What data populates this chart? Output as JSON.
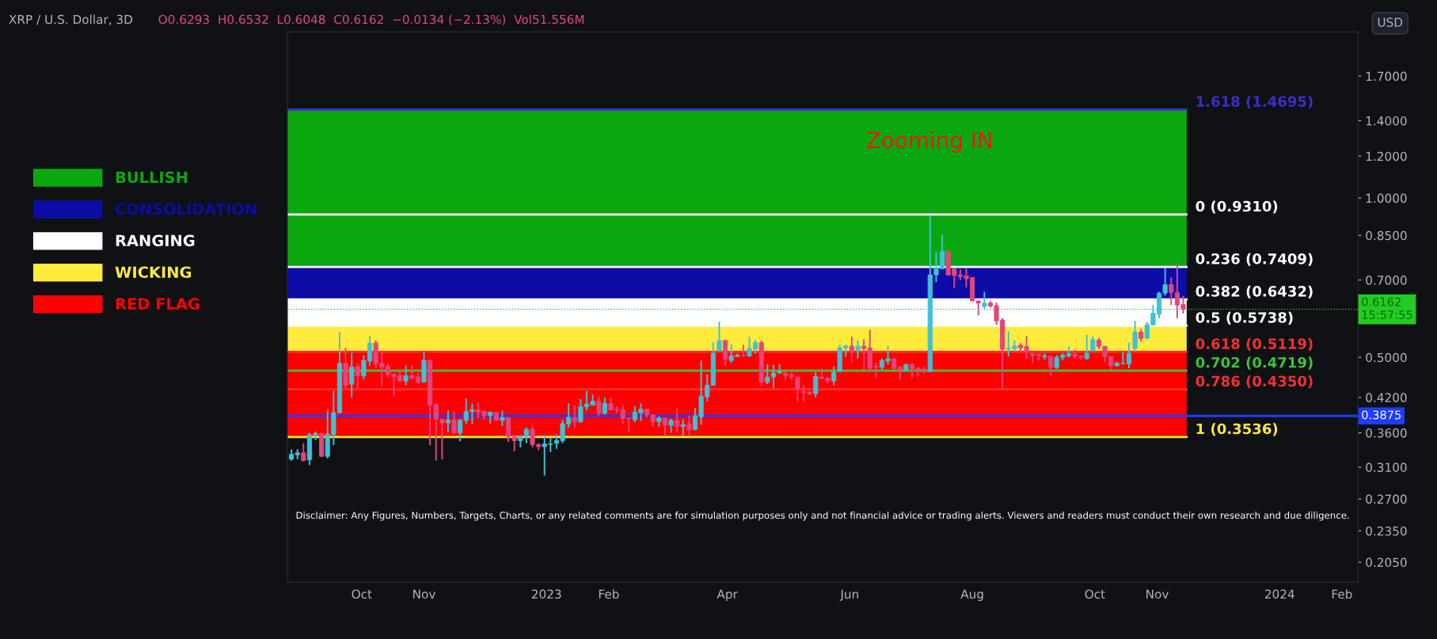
{
  "chart_data": {
    "type": "candlestick",
    "title": "XRP / U.S. Dollar, 3D",
    "subtitle": "O0.6293  H0.6532  L0.6048  C0.6162  −0.0134 (−2.13%)  Vol51.556M",
    "ylabel": "USD",
    "annotations": [
      "Zooming IN",
      "Disclaimer: Any Figures, Numbers, Targets, Charts, or any related comments are for simulation purposes only and not financial advice or trading alerts. Viewers and readers must conduct their own research and due diligence."
    ],
    "x": [
      "2022-08-27",
      "2022-08-30",
      "2022-09-02",
      "2022-09-05",
      "2022-09-08",
      "2022-09-11",
      "2022-09-14",
      "2022-09-17",
      "2022-09-20",
      "2022-09-23",
      "2022-09-26",
      "2022-09-29",
      "2022-10-02",
      "2022-10-05",
      "2022-10-08",
      "2022-10-11",
      "2022-10-14",
      "2022-10-17",
      "2022-10-20",
      "2022-10-23",
      "2022-10-26",
      "2022-10-29",
      "2022-11-01",
      "2022-11-04",
      "2022-11-07",
      "2022-11-10",
      "2022-11-13",
      "2022-11-16",
      "2022-11-19",
      "2022-11-22",
      "2022-11-25",
      "2022-11-28",
      "2022-12-01",
      "2022-12-04",
      "2022-12-07",
      "2022-12-10",
      "2022-12-13",
      "2022-12-16",
      "2022-12-19",
      "2022-12-22",
      "2022-12-25",
      "2022-12-28",
      "2022-12-31",
      "2023-01-03",
      "2023-01-06",
      "2023-01-09",
      "2023-01-12",
      "2023-01-15",
      "2023-01-18",
      "2023-01-21",
      "2023-01-24",
      "2023-01-27",
      "2023-01-30",
      "2023-02-02",
      "2023-02-05",
      "2023-02-08",
      "2023-02-11",
      "2023-02-14",
      "2023-02-17",
      "2023-02-20",
      "2023-02-23",
      "2023-02-26",
      "2023-03-01",
      "2023-03-04",
      "2023-03-07",
      "2023-03-10",
      "2023-03-13",
      "2023-03-16",
      "2023-03-19",
      "2023-03-22",
      "2023-03-25",
      "2023-03-28",
      "2023-03-31",
      "2023-04-03",
      "2023-04-06",
      "2023-04-09",
      "2023-04-12",
      "2023-04-15",
      "2023-04-18",
      "2023-04-21",
      "2023-04-24",
      "2023-04-27",
      "2023-04-30",
      "2023-05-03",
      "2023-05-06",
      "2023-05-09",
      "2023-05-12",
      "2023-05-15",
      "2023-05-18",
      "2023-05-21",
      "2023-05-24",
      "2023-05-27",
      "2023-05-30",
      "2023-06-02",
      "2023-06-05",
      "2023-06-08",
      "2023-06-11",
      "2023-06-14",
      "2023-06-17",
      "2023-06-20",
      "2023-06-23",
      "2023-06-26",
      "2023-06-29",
      "2023-07-02",
      "2023-07-05",
      "2023-07-08",
      "2023-07-11",
      "2023-07-14",
      "2023-07-17",
      "2023-07-20",
      "2023-07-23",
      "2023-07-26",
      "2023-07-29",
      "2023-08-01",
      "2023-08-04",
      "2023-08-07",
      "2023-08-10",
      "2023-08-13",
      "2023-08-16",
      "2023-08-19",
      "2023-08-22",
      "2023-08-25",
      "2023-08-28",
      "2023-08-31",
      "2023-09-03",
      "2023-09-06",
      "2023-09-09",
      "2023-09-12",
      "2023-09-15",
      "2023-09-18",
      "2023-09-21",
      "2023-09-24",
      "2023-09-27",
      "2023-09-30",
      "2023-10-03",
      "2023-10-06",
      "2023-10-09",
      "2023-10-12",
      "2023-10-15",
      "2023-10-18",
      "2023-10-21",
      "2023-10-24",
      "2023-10-27",
      "2023-10-30",
      "2023-11-02",
      "2023-11-05",
      "2023-11-08",
      "2023-11-11",
      "2023-11-14"
    ],
    "ohlc": [
      [
        0.321,
        0.335,
        0.319,
        0.328
      ],
      [
        0.327,
        0.335,
        0.321,
        0.33
      ],
      [
        0.33,
        0.344,
        0.318,
        0.319
      ],
      [
        0.32,
        0.36,
        0.313,
        0.357
      ],
      [
        0.356,
        0.362,
        0.349,
        0.359
      ],
      [
        0.359,
        0.36,
        0.324,
        0.325
      ],
      [
        0.325,
        0.399,
        0.322,
        0.358
      ],
      [
        0.357,
        0.432,
        0.341,
        0.393
      ],
      [
        0.393,
        0.558,
        0.392,
        0.487
      ],
      [
        0.487,
        0.521,
        0.437,
        0.443
      ],
      [
        0.445,
        0.51,
        0.419,
        0.48
      ],
      [
        0.48,
        0.486,
        0.437,
        0.461
      ],
      [
        0.461,
        0.505,
        0.454,
        0.493
      ],
      [
        0.492,
        0.549,
        0.482,
        0.532
      ],
      [
        0.532,
        0.538,
        0.477,
        0.486
      ],
      [
        0.487,
        0.512,
        0.441,
        0.479
      ],
      [
        0.481,
        0.487,
        0.458,
        0.464
      ],
      [
        0.465,
        0.465,
        0.4225,
        0.459
      ],
      [
        0.462,
        0.473,
        0.449,
        0.451
      ],
      [
        0.451,
        0.483,
        0.443,
        0.462
      ],
      [
        0.462,
        0.483,
        0.454,
        0.457
      ],
      [
        0.459,
        0.467,
        0.445,
        0.449
      ],
      [
        0.449,
        0.511,
        0.449,
        0.493
      ],
      [
        0.494,
        0.494,
        0.341,
        0.406
      ],
      [
        0.407,
        0.41,
        0.319,
        0.382
      ],
      [
        0.382,
        0.382,
        0.321,
        0.376
      ],
      [
        0.376,
        0.397,
        0.361,
        0.381
      ],
      [
        0.381,
        0.395,
        0.358,
        0.36
      ],
      [
        0.36,
        0.381,
        0.347,
        0.381
      ],
      [
        0.38,
        0.418,
        0.374,
        0.395
      ],
      [
        0.395,
        0.409,
        0.374,
        0.398
      ],
      [
        0.398,
        0.411,
        0.384,
        0.394
      ],
      [
        0.395,
        0.397,
        0.381,
        0.388
      ],
      [
        0.388,
        0.394,
        0.375,
        0.394
      ],
      [
        0.394,
        0.394,
        0.379,
        0.38
      ],
      [
        0.38,
        0.397,
        0.371,
        0.385
      ],
      [
        0.385,
        0.385,
        0.346,
        0.354
      ],
      [
        0.354,
        0.354,
        0.332,
        0.348
      ],
      [
        0.348,
        0.354,
        0.338,
        0.354
      ],
      [
        0.354,
        0.369,
        0.344,
        0.365
      ],
      [
        0.365,
        0.373,
        0.338,
        0.342
      ],
      [
        0.342,
        0.344,
        0.334,
        0.339
      ],
      [
        0.339,
        0.356,
        0.299,
        0.343
      ],
      [
        0.342,
        0.352,
        0.331,
        0.343
      ],
      [
        0.344,
        0.357,
        0.336,
        0.348
      ],
      [
        0.348,
        0.381,
        0.344,
        0.3745
      ],
      [
        0.374,
        0.409,
        0.368,
        0.385
      ],
      [
        0.385,
        0.406,
        0.368,
        0.378
      ],
      [
        0.378,
        0.417,
        0.376,
        0.403
      ],
      [
        0.403,
        0.432,
        0.397,
        0.408
      ],
      [
        0.406,
        0.425,
        0.406,
        0.413
      ],
      [
        0.413,
        0.422,
        0.388,
        0.392
      ],
      [
        0.392,
        0.42,
        0.39,
        0.409
      ],
      [
        0.409,
        0.42,
        0.397,
        0.398
      ],
      [
        0.399,
        0.404,
        0.393,
        0.398
      ],
      [
        0.398,
        0.407,
        0.3745,
        0.383
      ],
      [
        0.384,
        0.384,
        0.362,
        0.383
      ],
      [
        0.381,
        0.404,
        0.377,
        0.394
      ],
      [
        0.393,
        0.409,
        0.379,
        0.399
      ],
      [
        0.399,
        0.4,
        0.385,
        0.389
      ],
      [
        0.389,
        0.39,
        0.37,
        0.378
      ],
      [
        0.378,
        0.387,
        0.37,
        0.384
      ],
      [
        0.384,
        0.384,
        0.356,
        0.372
      ],
      [
        0.372,
        0.383,
        0.36,
        0.38
      ],
      [
        0.38,
        0.401,
        0.36,
        0.37
      ],
      [
        0.37,
        0.382,
        0.356,
        0.373
      ],
      [
        0.3745,
        0.388,
        0.356,
        0.365
      ],
      [
        0.365,
        0.401,
        0.364,
        0.388
      ],
      [
        0.386,
        0.493,
        0.373,
        0.4225
      ],
      [
        0.421,
        0.464,
        0.413,
        0.443
      ],
      [
        0.443,
        0.534,
        0.442,
        0.509
      ],
      [
        0.514,
        0.584,
        0.514,
        0.538
      ],
      [
        0.538,
        0.539,
        0.482,
        0.496
      ],
      [
        0.493,
        0.5285,
        0.488,
        0.503
      ],
      [
        0.502,
        0.508,
        0.501,
        0.505
      ],
      [
        0.505,
        0.5285,
        0.501,
        0.504
      ],
      [
        0.503,
        0.547,
        0.501,
        0.5195
      ],
      [
        0.518,
        0.539,
        0.508,
        0.533
      ],
      [
        0.533,
        0.538,
        0.441,
        0.449
      ],
      [
        0.449,
        0.485,
        0.445,
        0.459
      ],
      [
        0.459,
        0.484,
        0.437,
        0.467
      ],
      [
        0.467,
        0.486,
        0.466,
        0.47
      ],
      [
        0.467,
        0.475,
        0.4526,
        0.462
      ],
      [
        0.463,
        0.4685,
        0.4526,
        0.459
      ],
      [
        0.459,
        0.459,
        0.413,
        0.437
      ],
      [
        0.431,
        0.443,
        0.412,
        0.429
      ],
      [
        0.43,
        0.43,
        0.424,
        0.427
      ],
      [
        0.427,
        0.4685,
        0.42,
        0.46
      ],
      [
        0.459,
        0.4766,
        0.455,
        0.456
      ],
      [
        0.457,
        0.459,
        0.446,
        0.451
      ],
      [
        0.451,
        0.481,
        0.443,
        0.4685
      ],
      [
        0.47,
        0.5285,
        0.47,
        0.521
      ],
      [
        0.521,
        0.5285,
        0.501,
        0.525
      ],
      [
        0.525,
        0.547,
        0.488,
        0.515
      ],
      [
        0.515,
        0.538,
        0.497,
        0.525
      ],
      [
        0.525,
        0.541,
        0.474,
        0.5195
      ],
      [
        0.521,
        0.564,
        0.4685,
        0.4766
      ],
      [
        0.481,
        0.488,
        0.457,
        0.479
      ],
      [
        0.479,
        0.497,
        0.474,
        0.4933
      ],
      [
        0.492,
        0.5255,
        0.4848,
        0.497
      ],
      [
        0.497,
        0.499,
        0.475,
        0.4766
      ],
      [
        0.479,
        0.482,
        0.4526,
        0.473
      ],
      [
        0.473,
        0.486,
        0.47,
        0.4848
      ],
      [
        0.484,
        0.488,
        0.458,
        0.476
      ],
      [
        0.477,
        0.48,
        0.4605,
        0.474
      ],
      [
        0.475,
        0.48,
        0.466,
        0.473
      ],
      [
        0.471,
        0.927,
        0.4685,
        0.716
      ],
      [
        0.716,
        0.79,
        0.694,
        0.735
      ],
      [
        0.735,
        0.853,
        0.735,
        0.793
      ],
      [
        0.793,
        0.793,
        0.715,
        0.715
      ],
      [
        0.735,
        0.735,
        0.675,
        0.714
      ],
      [
        0.716,
        0.733,
        0.7,
        0.711
      ],
      [
        0.713,
        0.735,
        0.678,
        0.704
      ],
      [
        0.708,
        0.708,
        0.638,
        0.639
      ],
      [
        0.639,
        0.64,
        0.6,
        0.633
      ],
      [
        0.624,
        0.665,
        0.617,
        0.633
      ],
      [
        0.633,
        0.639,
        0.621,
        0.625
      ],
      [
        0.626,
        0.635,
        0.576,
        0.586
      ],
      [
        0.588,
        0.593,
        0.437,
        0.518
      ],
      [
        0.518,
        0.56,
        0.502,
        0.52
      ],
      [
        0.5195,
        0.538,
        0.513,
        0.525
      ],
      [
        0.527,
        0.532,
        0.513,
        0.521
      ],
      [
        0.524,
        0.549,
        0.497,
        0.513
      ],
      [
        0.508,
        0.508,
        0.488,
        0.504
      ],
      [
        0.507,
        0.508,
        0.4933,
        0.504
      ],
      [
        0.501,
        0.509,
        0.495,
        0.503
      ],
      [
        0.503,
        0.503,
        0.462,
        0.479
      ],
      [
        0.478,
        0.505,
        0.475,
        0.5
      ],
      [
        0.5,
        0.509,
        0.4933,
        0.505
      ],
      [
        0.503,
        0.525,
        0.5,
        0.508
      ],
      [
        0.507,
        0.517,
        0.497,
        0.502
      ],
      [
        0.503,
        0.503,
        0.495,
        0.5
      ],
      [
        0.497,
        0.551,
        0.495,
        0.509
      ],
      [
        0.515,
        0.548,
        0.513,
        0.54
      ],
      [
        0.539,
        0.544,
        0.518,
        0.524
      ],
      [
        0.524,
        0.526,
        0.49,
        0.502
      ],
      [
        0.502,
        0.502,
        0.475,
        0.482
      ],
      [
        0.482,
        0.49,
        0.48,
        0.488
      ],
      [
        0.486,
        0.511,
        0.4848,
        0.487
      ],
      [
        0.486,
        0.533,
        0.4766,
        0.509
      ],
      [
        0.5195,
        0.586,
        0.513,
        0.558
      ],
      [
        0.558,
        0.566,
        0.535,
        0.543
      ],
      [
        0.543,
        0.583,
        0.541,
        0.576
      ],
      [
        0.576,
        0.628,
        0.575,
        0.606
      ],
      [
        0.603,
        0.665,
        0.593,
        0.661
      ],
      [
        0.661,
        0.737,
        0.654,
        0.686
      ],
      [
        0.686,
        0.708,
        0.628,
        0.663
      ],
      [
        0.663,
        0.754,
        0.593,
        0.628
      ],
      [
        0.6293,
        0.6532,
        0.6048,
        0.6162
      ]
    ],
    "colors": [
      "#3fc1d6",
      "#3fc1d6",
      "#e2467f",
      "#3fc1d6",
      "#3fc1d6",
      "#e2467f",
      "#3fc1d6",
      "#3fc1d6",
      "#3fc1d6",
      "#e2467f",
      "#3fc1d6",
      "#e2467f",
      "#3fc1d6",
      "#3fc1d6",
      "#e2467f",
      "#e2467f",
      "#e2467f",
      "#e2467f",
      "#e2467f",
      "#3fc1d6",
      "#e2467f",
      "#e2467f",
      "#3fc1d6",
      "#e2467f",
      "#e2467f",
      "#e2467f",
      "#3fc1d6",
      "#e2467f",
      "#3fc1d6",
      "#3fc1d6",
      "#3fc1d6",
      "#e2467f",
      "#e2467f",
      "#3fc1d6",
      "#e2467f",
      "#3fc1d6",
      "#e2467f",
      "#e2467f",
      "#3fc1d6",
      "#3fc1d6",
      "#e2467f",
      "#e2467f",
      "#3fc1d6",
      "#3fc1d6",
      "#3fc1d6",
      "#3fc1d6",
      "#3fc1d6",
      "#e2467f",
      "#3fc1d6",
      "#3fc1d6",
      "#3fc1d6",
      "#e2467f",
      "#3fc1d6",
      "#e2467f",
      "#e2467f",
      "#e2467f",
      "#e2467f",
      "#3fc1d6",
      "#3fc1d6",
      "#e2467f",
      "#e2467f",
      "#3fc1d6",
      "#e2467f",
      "#3fc1d6",
      "#e2467f",
      "#3fc1d6",
      "#e2467f",
      "#3fc1d6",
      "#3fc1d6",
      "#3fc1d6",
      "#3fc1d6",
      "#3fc1d6",
      "#e2467f",
      "#3fc1d6",
      "#3fc1d6",
      "#e2467f",
      "#3fc1d6",
      "#3fc1d6",
      "#e2467f",
      "#3fc1d6",
      "#3fc1d6",
      "#3fc1d6",
      "#e2467f",
      "#e2467f",
      "#e2467f",
      "#e2467f",
      "#e2467f",
      "#3fc1d6",
      "#e2467f",
      "#e2467f",
      "#3fc1d6",
      "#3fc1d6",
      "#3fc1d6",
      "#e2467f",
      "#3fc1d6",
      "#e2467f",
      "#e2467f",
      "#e2467f",
      "#3fc1d6",
      "#3fc1d6",
      "#e2467f",
      "#e2467f",
      "#3fc1d6",
      "#e2467f",
      "#e2467f",
      "#e2467f",
      "#3fc1d6",
      "#3fc1d6",
      "#3fc1d6",
      "#e2467f",
      "#e2467f",
      "#e2467f",
      "#e2467f",
      "#e2467f",
      "#e2467f",
      "#3fc1d6",
      "#e2467f",
      "#e2467f",
      "#e2467f",
      "#3fc1d6",
      "#3fc1d6",
      "#e2467f",
      "#e2467f",
      "#e2467f",
      "#e2467f",
      "#3fc1d6",
      "#e2467f",
      "#3fc1d6",
      "#3fc1d6",
      "#3fc1d6",
      "#e2467f",
      "#e2467f",
      "#3fc1d6",
      "#3fc1d6",
      "#e2467f",
      "#e2467f",
      "#e2467f",
      "#3fc1d6",
      "#3fc1d6",
      "#3fc1d6",
      "#3fc1d6",
      "#e2467f",
      "#3fc1d6",
      "#3fc1d6",
      "#3fc1d6",
      "#3fc1d6",
      "#e2467f",
      "#e2467f",
      "#e2467f"
    ],
    "log": "y",
    "xlim": [
      "2022-08-25",
      "2024-02-09"
    ],
    "xticks": [
      {
        "value": "2022-10-01",
        "label": "Oct"
      },
      {
        "value": "2022-11-01",
        "label": "Nov"
      },
      {
        "value": "2023-01-01",
        "label": "2023"
      },
      {
        "value": "2023-02-01",
        "label": "Feb"
      },
      {
        "value": "2023-04-01",
        "label": "Apr"
      },
      {
        "value": "2023-06-01",
        "label": "Jun"
      },
      {
        "value": "2023-08-01",
        "label": "Aug"
      },
      {
        "value": "2023-10-01",
        "label": "Oct"
      },
      {
        "value": "2023-11-01",
        "label": "Nov"
      },
      {
        "value": "2024-01-01",
        "label": "2024"
      },
      {
        "value": "2024-02-01",
        "label": "Feb"
      }
    ],
    "ylim": [
      0.188,
      2.06
    ],
    "yticks": [
      {
        "value": 1.7,
        "label": "1.7000"
      },
      {
        "value": 1.4,
        "label": "1.4000"
      },
      {
        "value": 1.2,
        "label": "1.2000"
      },
      {
        "value": 1.0,
        "label": "1.0000"
      },
      {
        "value": 0.85,
        "label": "0.8500"
      },
      {
        "value": 0.7,
        "label": "0.7000"
      },
      {
        "value": 0.5,
        "label": "0.5000"
      },
      {
        "value": 0.42,
        "label": "0.4200"
      },
      {
        "value": 0.36,
        "label": "0.3600"
      },
      {
        "value": 0.31,
        "label": "0.3100"
      },
      {
        "value": 0.27,
        "label": "0.2700"
      },
      {
        "value": 0.235,
        "label": "0.2350"
      },
      {
        "value": 0.205,
        "label": "0.2050"
      }
    ],
    "bands": [
      {
        "axis": "y",
        "from": 0.7409,
        "to": 1.4695,
        "label": "BULLISH",
        "color": "#0aa80e"
      },
      {
        "axis": "y",
        "from": 0.6432,
        "to": 0.7409,
        "label": "CONSOLIDATION",
        "color": "#0c0ca6"
      },
      {
        "axis": "y",
        "from": 0.5738,
        "to": 0.6432,
        "label": "RANGING",
        "color": "#ffffff"
      },
      {
        "axis": "y",
        "from": 0.5119,
        "to": 0.5738,
        "label": "WICKING",
        "color": "#ffeb3b"
      },
      {
        "axis": "y",
        "from": 0.3536,
        "to": 0.5119,
        "label": "RED FLAG",
        "color": "#ff0000"
      }
    ],
    "ref_lines": [
      {
        "axis": "y",
        "value": 1.4695,
        "label": "1.618 (1.4695)",
        "color": "#3a2fc8"
      },
      {
        "axis": "y",
        "value": 0.931,
        "label": "0 (0.9310)",
        "color": "#ffffff"
      },
      {
        "axis": "y",
        "value": 0.7409,
        "label": "0.236 (0.7409)",
        "color": "#ffffff"
      },
      {
        "axis": "y",
        "value": 0.6432,
        "label": "0.382 (0.6432)",
        "color": "#ffffff"
      },
      {
        "axis": "y",
        "value": 0.5738,
        "label": "0.5 (0.5738)",
        "color": "#ffffff"
      },
      {
        "axis": "y",
        "value": 0.5119,
        "label": "0.618 (0.5119)",
        "color": "#f23030"
      },
      {
        "axis": "y",
        "value": 0.4719,
        "label": "0.702 (0.4719)",
        "color": "#3cc43c"
      },
      {
        "axis": "y",
        "value": 0.435,
        "label": "0.786 (0.4350)",
        "color": "#f23030"
      },
      {
        "axis": "y",
        "value": 0.3536,
        "label": "1 (0.3536)",
        "color": "#ffeb3b"
      },
      {
        "axis": "y",
        "value": 0.3875,
        "label": "0.3875",
        "color": "#1e3cff"
      },
      {
        "axis": "y",
        "value": 0.6162,
        "label": "0.6162\n15:57:55",
        "color": "#22cc22",
        "line_style": "dotted"
      }
    ],
    "legend": "left",
    "grid": false
  }
}
